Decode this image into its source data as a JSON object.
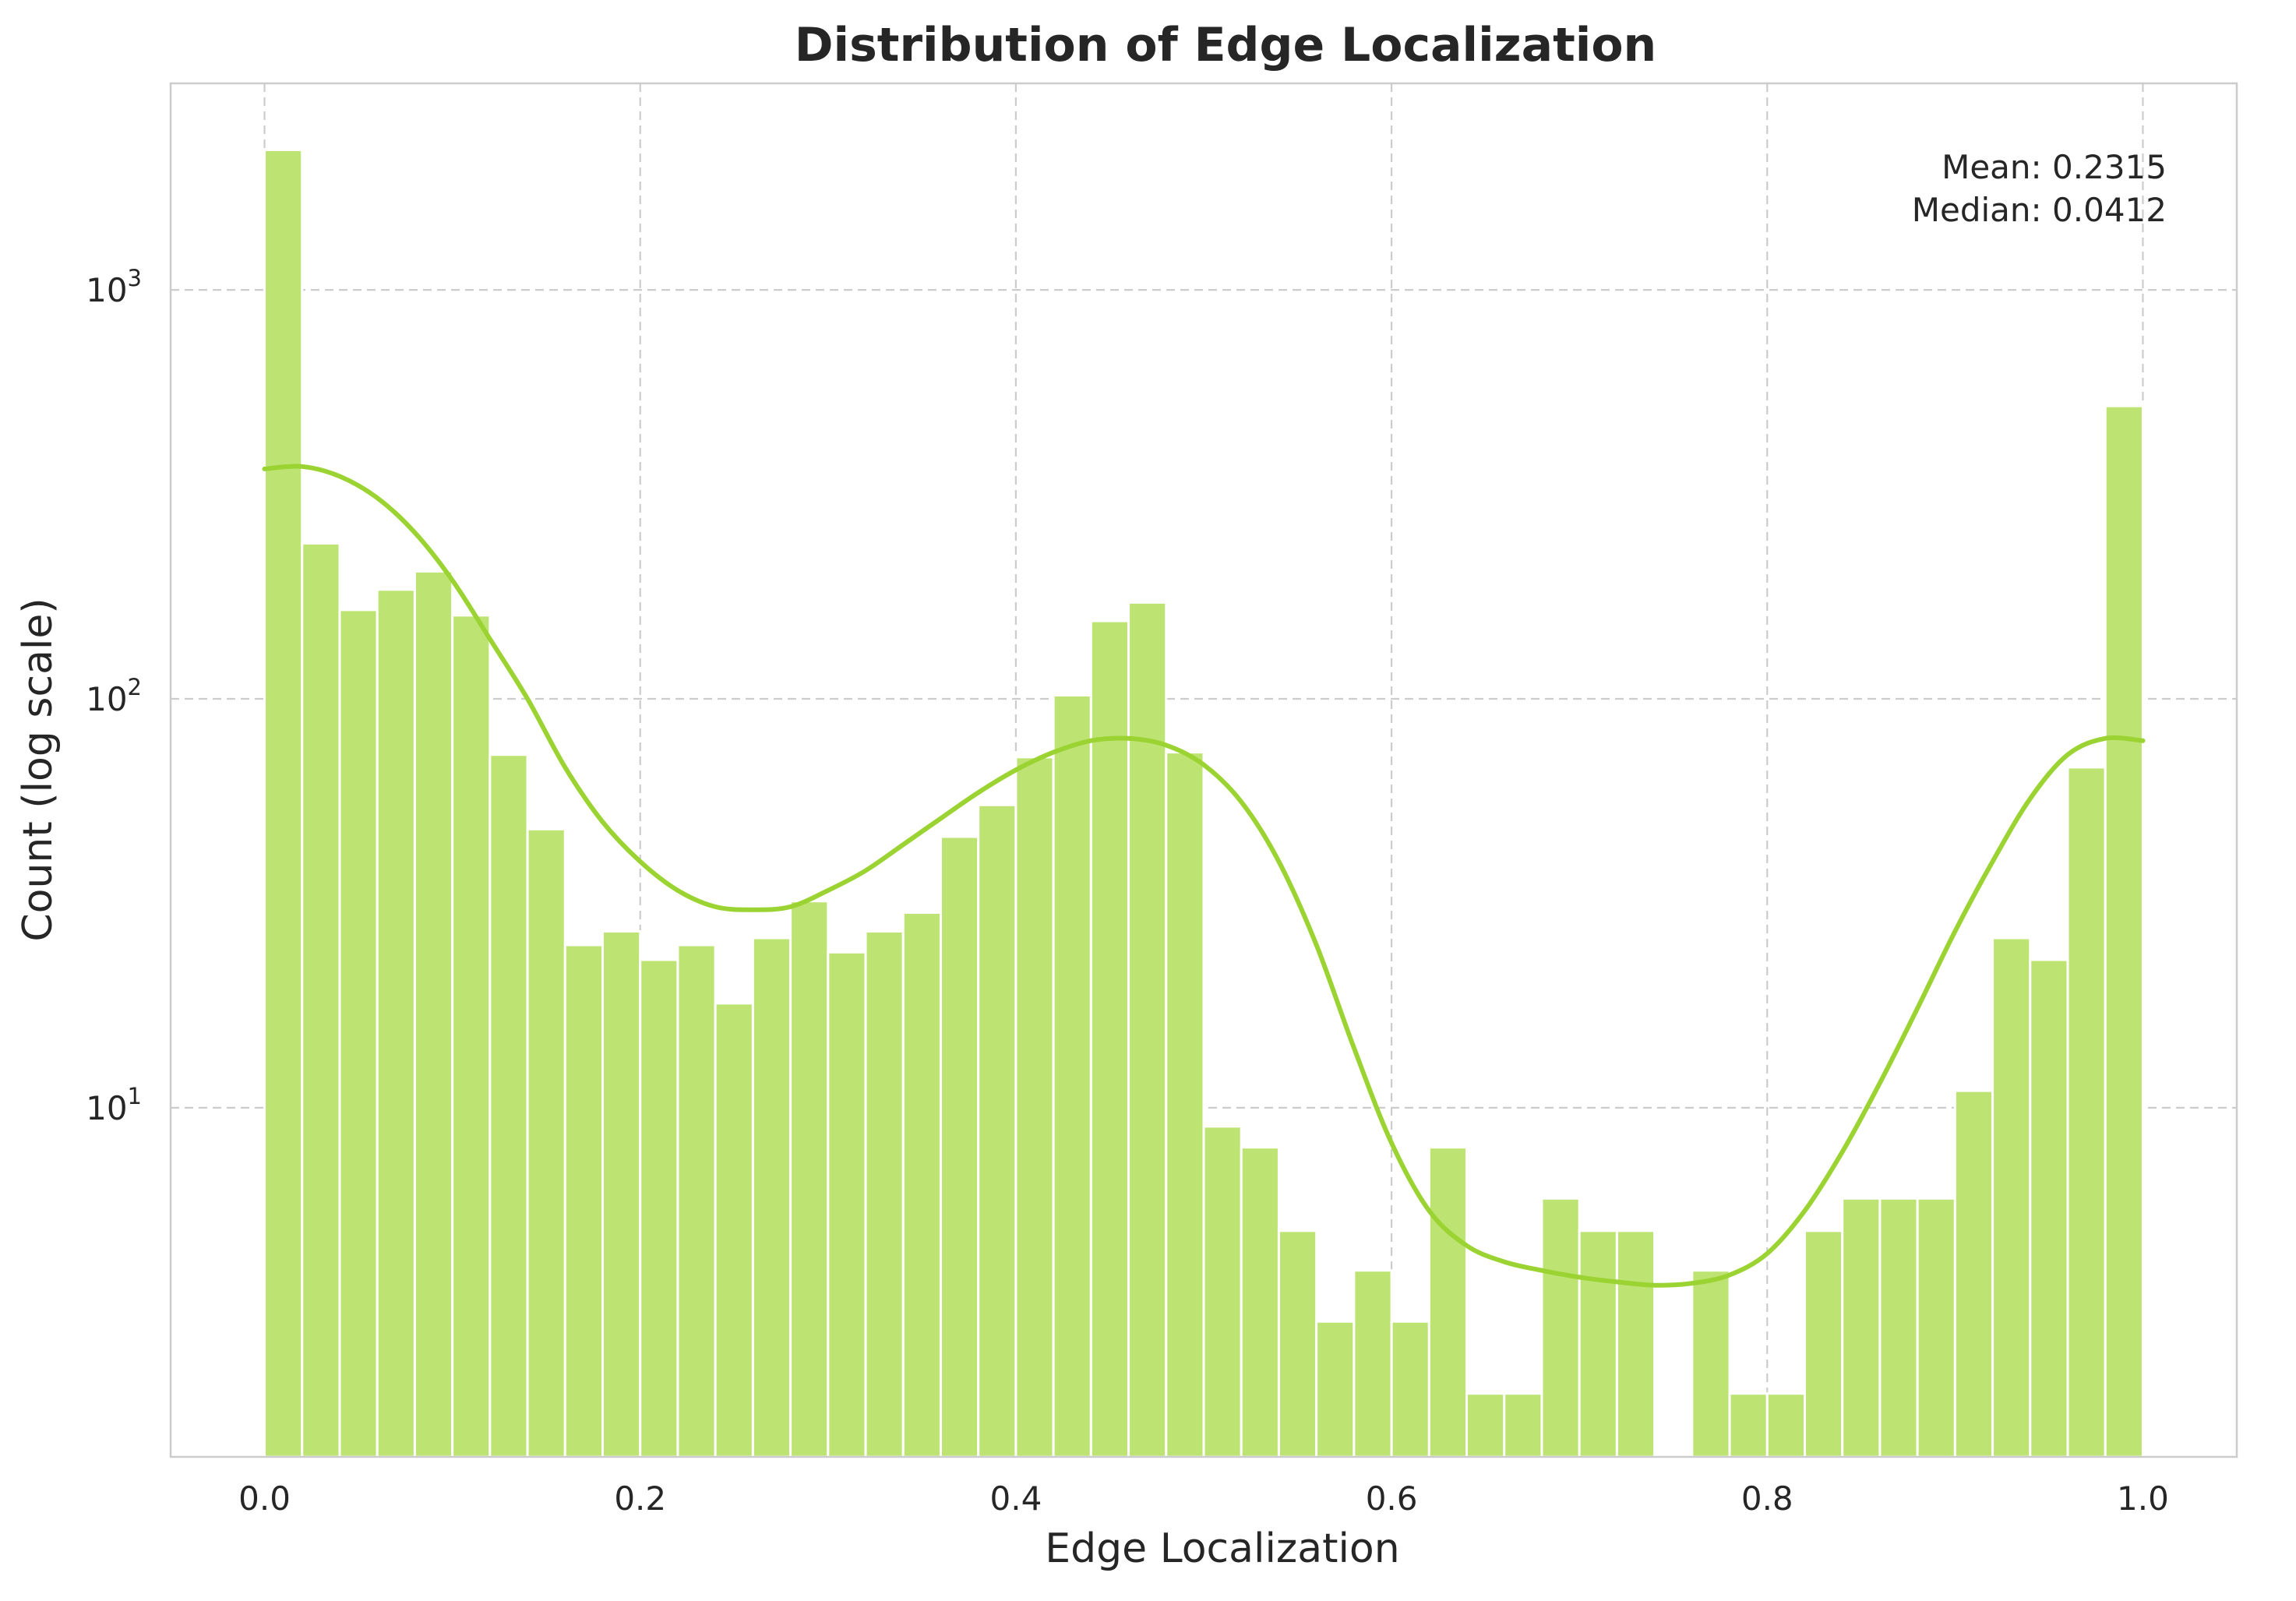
{
  "chart_data": {
    "type": "bar",
    "title": "Distribution of Edge Localization",
    "xlabel": "Edge Localization",
    "ylabel": "Count (log scale)",
    "xlim": [
      -0.05,
      1.05
    ],
    "ylim": [
      1.4,
      3200
    ],
    "y_scale": "log",
    "grid": true,
    "x_ticks": [
      {
        "value": 0.0,
        "label": "0.0"
      },
      {
        "value": 0.2,
        "label": "0.2"
      },
      {
        "value": 0.4,
        "label": "0.4"
      },
      {
        "value": 0.6,
        "label": "0.6"
      },
      {
        "value": 0.8,
        "label": "0.8"
      },
      {
        "value": 1.0,
        "label": "1.0"
      }
    ],
    "y_ticks": [
      {
        "value": 10,
        "base": "10",
        "exp": "1"
      },
      {
        "value": 100,
        "base": "10",
        "exp": "2"
      },
      {
        "value": 1000,
        "base": "10",
        "exp": "3"
      }
    ],
    "bin_edges": [
      0.0,
      1.0
    ],
    "bin_count": 50,
    "values": [
      2200,
      240,
      165,
      185,
      205,
      160,
      73,
      48,
      25,
      27,
      23,
      25,
      18,
      26,
      32,
      24,
      27,
      30,
      46,
      55,
      72,
      102,
      155,
      172,
      74,
      9,
      8,
      5,
      3,
      4,
      3,
      8,
      2,
      2,
      6,
      5,
      5,
      0,
      4,
      2,
      2,
      5,
      6,
      6,
      6,
      11,
      26,
      23,
      68,
      520
    ],
    "kde": {
      "x": [
        0.0,
        0.02,
        0.04,
        0.06,
        0.08,
        0.1,
        0.12,
        0.14,
        0.16,
        0.18,
        0.2,
        0.22,
        0.24,
        0.26,
        0.28,
        0.3,
        0.32,
        0.34,
        0.36,
        0.38,
        0.4,
        0.42,
        0.44,
        0.46,
        0.48,
        0.5,
        0.52,
        0.54,
        0.56,
        0.58,
        0.6,
        0.62,
        0.64,
        0.66,
        0.68,
        0.7,
        0.72,
        0.74,
        0.76,
        0.78,
        0.8,
        0.82,
        0.84,
        0.86,
        0.88,
        0.9,
        0.92,
        0.94,
        0.96,
        0.98,
        1.0
      ],
      "y": [
        365,
        370,
        350,
        310,
        255,
        195,
        140,
        100,
        68,
        50,
        40,
        34,
        31,
        30.5,
        31,
        34,
        38,
        44,
        51,
        59,
        67,
        74,
        79,
        80,
        77,
        69,
        56,
        40,
        25,
        14,
        8.2,
        5.6,
        4.6,
        4.2,
        4.0,
        3.85,
        3.75,
        3.68,
        3.72,
        3.9,
        4.4,
        5.6,
        7.8,
        11.5,
        17.5,
        27,
        40,
        57,
        73,
        80,
        79
      ],
      "color": "#9bd432"
    },
    "bar_color": "#bde473",
    "annotations": [
      "Mean: 0.2315",
      "Median: 0.0412"
    ],
    "annotation_position": "top-right"
  }
}
